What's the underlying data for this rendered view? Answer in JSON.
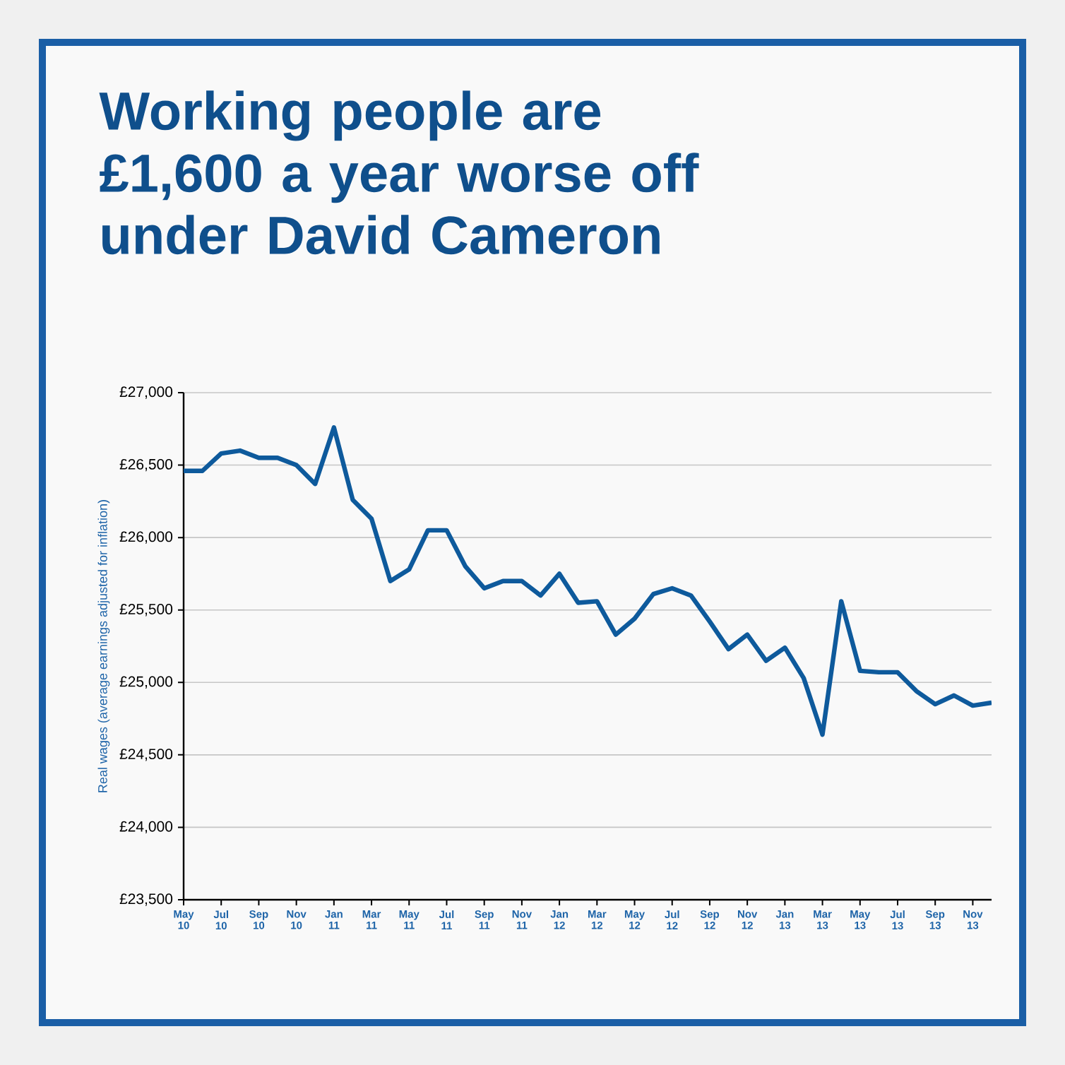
{
  "chart_data": {
    "type": "line",
    "title": "Working people are £1,600 a year worse off under David Cameron",
    "ylabel": "Real wages (average earnings adjusted for inflation)",
    "categories": [
      "May 10",
      null,
      "Jul 10",
      null,
      "Sep 10",
      null,
      "Nov 10",
      null,
      "Jan 11",
      null,
      "Mar 11",
      null,
      "May 11",
      null,
      "Jul 11",
      null,
      "Sep 11",
      null,
      "Nov 11",
      null,
      "Jan 12",
      null,
      "Mar 12",
      null,
      "May 12",
      null,
      "Jul 12",
      null,
      "Sep 12",
      null,
      "Nov 12",
      null,
      "Jan 13",
      null,
      "Mar 13",
      null,
      "May 13",
      null,
      "Jul 13",
      null,
      "Sep 13",
      null,
      "Nov 13",
      null
    ],
    "series": [
      {
        "color": "#0e5a9c",
        "values": [
          26460,
          26460,
          26580,
          26600,
          26550,
          26550,
          26500,
          26370,
          26760,
          26260,
          26130,
          25700,
          25780,
          26050,
          26050,
          25800,
          25650,
          25700,
          25700,
          25600,
          25750,
          25550,
          25560,
          25330,
          25440,
          25610,
          25650,
          25600,
          25420,
          25230,
          25330,
          25150,
          25240,
          25030,
          24640,
          25560,
          25080,
          25070,
          25070,
          24940,
          24850,
          24910,
          24840,
          24860
        ]
      }
    ],
    "ylim": [
      23500,
      27000
    ],
    "yticks": [
      {
        "value": 23500,
        "label": "£23,500"
      },
      {
        "value": 24000,
        "label": "£24,000"
      },
      {
        "value": 24500,
        "label": "£24,500"
      },
      {
        "value": 25000,
        "label": "£25,000"
      },
      {
        "value": 25500,
        "label": "£25,500"
      },
      {
        "value": 26000,
        "label": "£26,000"
      },
      {
        "value": 26500,
        "label": "£26,500"
      },
      {
        "value": 27000,
        "label": "£27,000"
      }
    ],
    "grid": "y",
    "marker": "none",
    "line_style": "solid"
  }
}
